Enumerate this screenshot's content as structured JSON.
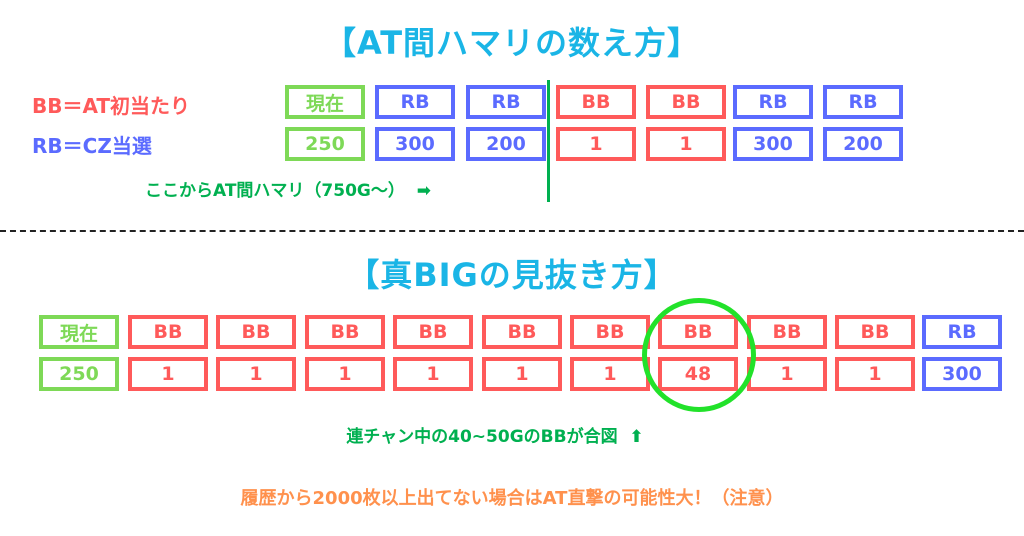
{
  "colors": {
    "bb": "#ff5a5a",
    "rb": "#5b6bff",
    "current": "#7ed957",
    "note": "#00b050",
    "title": "#1ab5e6",
    "warning": "#ff914d",
    "highlight": "#22e22a"
  },
  "section1": {
    "title": "【AT間ハマリの数え方】",
    "legend_bb": "BB＝AT初当たり",
    "legend_rb": "RB＝CZ当選",
    "columns": [
      {
        "type": "current",
        "label": "現在",
        "value": "250"
      },
      {
        "type": "rb",
        "label": "RB",
        "value": "300"
      },
      {
        "type": "rb",
        "label": "RB",
        "value": "200"
      },
      {
        "type": "bb",
        "label": "BB",
        "value": "1"
      },
      {
        "type": "bb",
        "label": "BB",
        "value": "1"
      },
      {
        "type": "rb",
        "label": "RB",
        "value": "300"
      },
      {
        "type": "rb",
        "label": "RB",
        "value": "200"
      }
    ],
    "note": "ここからAT間ハマリ（750G～）",
    "note_icon": "arrow-right-icon"
  },
  "section2": {
    "title": "【真BIGの見抜き方】",
    "columns": [
      {
        "type": "current",
        "label": "現在",
        "value": "250"
      },
      {
        "type": "bb",
        "label": "BB",
        "value": "1"
      },
      {
        "type": "bb",
        "label": "BB",
        "value": "1"
      },
      {
        "type": "bb",
        "label": "BB",
        "value": "1"
      },
      {
        "type": "bb",
        "label": "BB",
        "value": "1"
      },
      {
        "type": "bb",
        "label": "BB",
        "value": "1"
      },
      {
        "type": "bb",
        "label": "BB",
        "value": "1"
      },
      {
        "type": "bb",
        "label": "BB",
        "value": "48",
        "highlighted": true
      },
      {
        "type": "bb",
        "label": "BB",
        "value": "1"
      },
      {
        "type": "bb",
        "label": "BB",
        "value": "1"
      },
      {
        "type": "rb",
        "label": "RB",
        "value": "300"
      }
    ],
    "note": "連チャン中の40~50GのBBが合図",
    "note_icon": "arrow-up-icon",
    "warning": "履歴から2000枚以上出てない場合はAT直撃の可能性大！（注意）"
  }
}
